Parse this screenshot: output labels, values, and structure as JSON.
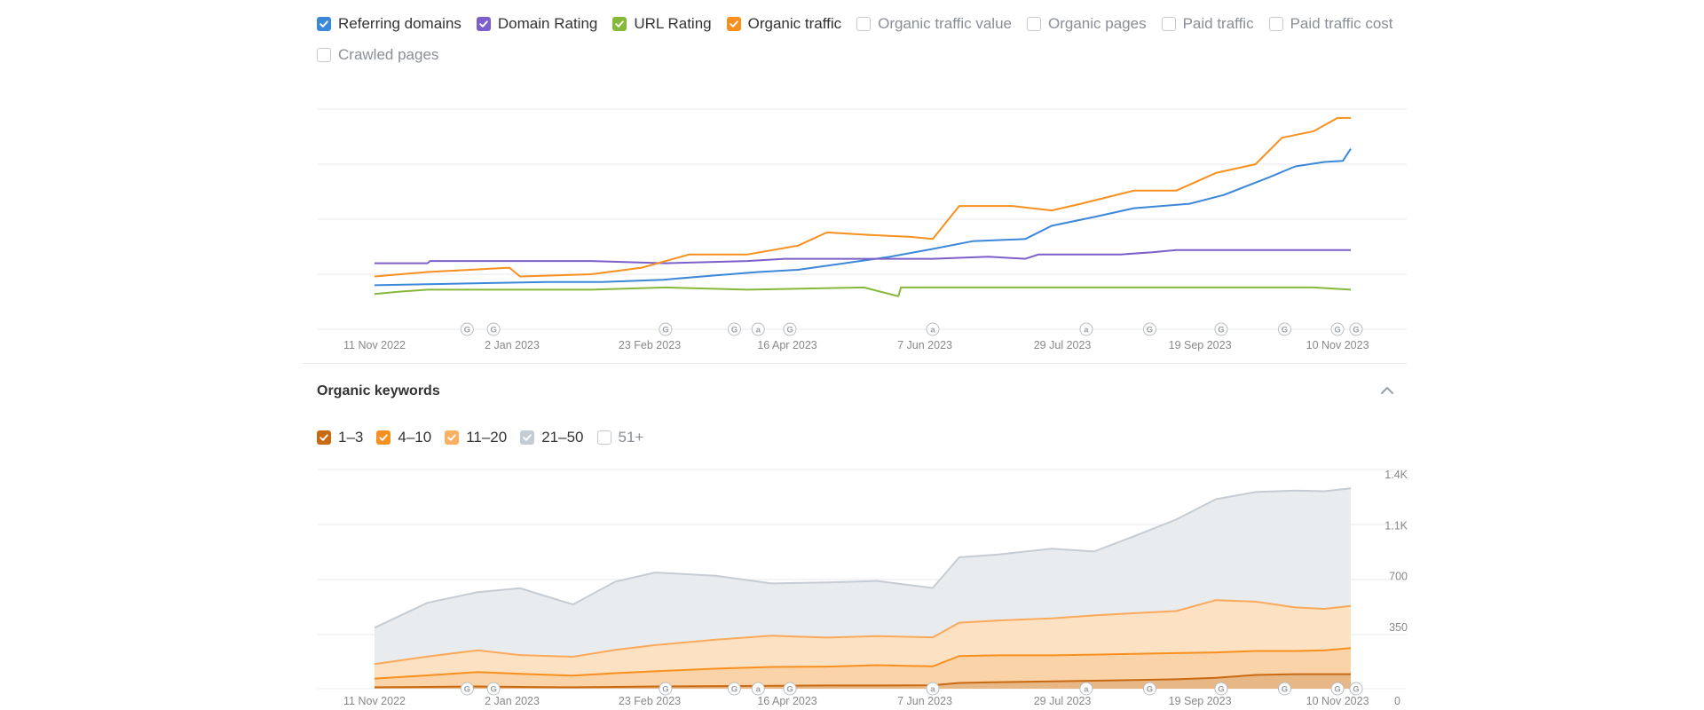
{
  "metrics": [
    {
      "label": "Referring domains",
      "checked": true,
      "color": "#3b87d8"
    },
    {
      "label": "Domain Rating",
      "checked": true,
      "color": "#7c5fc9"
    },
    {
      "label": "URL Rating",
      "checked": true,
      "color": "#86b83a"
    },
    {
      "label": "Organic traffic",
      "checked": true,
      "color": "#f7901e"
    },
    {
      "label": "Organic traffic value",
      "checked": false
    },
    {
      "label": "Organic pages",
      "checked": false
    },
    {
      "label": "Paid traffic",
      "checked": false
    },
    {
      "label": "Paid traffic cost",
      "checked": false
    },
    {
      "label": "Crawled pages",
      "checked": false
    }
  ],
  "keywords": {
    "title": "Organic keywords",
    "filters": [
      {
        "label": "1–3",
        "checked": true,
        "color": "#c96a12"
      },
      {
        "label": "4–10",
        "checked": true,
        "color": "#f7901e"
      },
      {
        "label": "11–20",
        "checked": true,
        "color": "#fbb062"
      },
      {
        "label": "21–50",
        "checked": true,
        "color": "#c4ccd6"
      },
      {
        "label": "51+",
        "checked": false
      }
    ]
  },
  "x_ticks": [
    "11 Nov 2022",
    "2 Jan 2023",
    "23 Feb 2023",
    "16 Apr 2023",
    "7 Jun 2023",
    "29 Jul 2023",
    "19 Sep 2023",
    "10 Nov 2023"
  ],
  "markers": [
    {
      "date": "2022-12-16",
      "letter": "G"
    },
    {
      "date": "2022-12-26",
      "letter": "G"
    },
    {
      "date": "2023-03-01",
      "letter": "G"
    },
    {
      "date": "2023-03-27",
      "letter": "G"
    },
    {
      "date": "2023-04-05",
      "letter": "a"
    },
    {
      "date": "2023-04-17",
      "letter": "G"
    },
    {
      "date": "2023-06-10",
      "letter": "a"
    },
    {
      "date": "2023-08-07",
      "letter": "a"
    },
    {
      "date": "2023-08-31",
      "letter": "G"
    },
    {
      "date": "2023-09-27",
      "letter": "G"
    },
    {
      "date": "2023-10-21",
      "letter": "G"
    },
    {
      "date": "2023-11-10",
      "letter": "G"
    },
    {
      "date": "2023-11-17",
      "letter": "G"
    }
  ],
  "chart_data": [
    {
      "type": "line",
      "x_range": [
        "2022-11-05",
        "2023-11-28"
      ],
      "grid": true,
      "y_axis_labels_shown": false,
      "series": [
        {
          "name": "Referring domains",
          "color": "#3b87d8",
          "y_range": [
            0,
            100
          ],
          "x": [
            "2022-11-11",
            "2022-12-01",
            "2022-12-25",
            "2023-01-15",
            "2023-02-05",
            "2023-02-28",
            "2023-03-20",
            "2023-04-05",
            "2023-04-20",
            "2023-05-05",
            "2023-05-25",
            "2023-06-10",
            "2023-06-25",
            "2023-07-15",
            "2023-07-25",
            "2023-08-10",
            "2023-08-25",
            "2023-09-15",
            "2023-09-28",
            "2023-10-15",
            "2023-10-25",
            "2023-11-05",
            "2023-11-12",
            "2023-11-15"
          ],
          "y": [
            20,
            20.5,
            21,
            21.5,
            21.5,
            22.5,
            24.5,
            26,
            27,
            29.5,
            33,
            36.5,
            40,
            41,
            47,
            51,
            55,
            57,
            61,
            69,
            74,
            76,
            76.5,
            82
          ]
        },
        {
          "name": "Domain Rating",
          "color": "#7c5fc9",
          "y_range": [
            0,
            100
          ],
          "x": [
            "2022-11-11",
            "2022-12-01",
            "2022-12-02",
            "2023-01-01",
            "2023-02-01",
            "2023-03-01",
            "2023-04-01",
            "2023-04-15",
            "2023-05-10",
            "2023-06-10",
            "2023-07-01",
            "2023-07-15",
            "2023-07-20",
            "2023-08-20",
            "2023-09-01",
            "2023-09-10",
            "2023-11-15"
          ],
          "y": [
            30,
            30,
            31,
            31,
            31,
            30,
            31,
            32,
            32,
            32,
            33,
            32,
            34,
            34,
            35,
            36,
            36
          ]
        },
        {
          "name": "URL Rating",
          "color": "#86b83a",
          "y_range": [
            0,
            100
          ],
          "x": [
            "2022-11-11",
            "2022-11-20",
            "2022-12-01",
            "2023-02-01",
            "2023-03-01",
            "2023-04-01",
            "2023-05-15",
            "2023-05-28",
            "2023-05-29",
            "2023-06-05",
            "2023-07-01",
            "2023-08-10",
            "2023-09-01",
            "2023-10-01",
            "2023-11-01",
            "2023-11-15"
          ],
          "y": [
            16,
            17,
            18,
            18,
            19,
            18,
            19,
            15,
            19,
            19,
            19,
            19,
            19,
            19,
            19,
            18
          ]
        },
        {
          "name": "Organic traffic",
          "color": "#f7901e",
          "y_range": [
            0,
            100
          ],
          "x": [
            "2022-11-11",
            "2022-12-01",
            "2023-01-01",
            "2023-01-05",
            "2023-02-01",
            "2023-02-20",
            "2023-03-10",
            "2023-04-01",
            "2023-04-20",
            "2023-05-01",
            "2023-05-15",
            "2023-06-01",
            "2023-06-10",
            "2023-06-20",
            "2023-07-10",
            "2023-07-25",
            "2023-08-05",
            "2023-08-25",
            "2023-09-10",
            "2023-09-25",
            "2023-10-10",
            "2023-10-20",
            "2023-11-01",
            "2023-11-10",
            "2023-11-15"
          ],
          "y": [
            24,
            26,
            28,
            24,
            25,
            28,
            34,
            34,
            38,
            44,
            43,
            42,
            41,
            56,
            56,
            54,
            57,
            63,
            63,
            71,
            75,
            87,
            90,
            96,
            96
          ]
        }
      ],
      "x_tick_labels": [
        "11 Nov 2022",
        "2 Jan 2023",
        "23 Feb 2023",
        "16 Apr 2023",
        "7 Jun 2023",
        "29 Jul 2023",
        "19 Sep 2023",
        "10 Nov 2023"
      ]
    },
    {
      "type": "area",
      "title": "Organic keywords",
      "stacked": true,
      "x_range": [
        "2022-11-05",
        "2023-11-28"
      ],
      "ylim": [
        0,
        1400
      ],
      "y_tick_labels": [
        "0",
        "350",
        "700",
        "1.1K",
        "1.4K"
      ],
      "y_tick_values": [
        0,
        350,
        700,
        1050,
        1400
      ],
      "x_tick_labels": [
        "11 Nov 2022",
        "2 Jan 2023",
        "23 Feb 2023",
        "16 Apr 2023",
        "7 Jun 2023",
        "29 Jul 2023",
        "19 Sep 2023",
        "10 Nov 2023"
      ],
      "x": [
        "2022-11-11",
        "2022-12-01",
        "2022-12-20",
        "2023-01-05",
        "2023-01-25",
        "2023-02-10",
        "2023-02-25",
        "2023-03-20",
        "2023-04-10",
        "2023-05-01",
        "2023-05-20",
        "2023-06-10",
        "2023-06-20",
        "2023-07-05",
        "2023-07-25",
        "2023-08-10",
        "2023-08-25",
        "2023-09-10",
        "2023-09-25",
        "2023-10-10",
        "2023-10-25",
        "2023-11-05",
        "2023-11-15"
      ],
      "series": [
        {
          "name": "1–3",
          "color": "#c96a12",
          "values": [
            10,
            12,
            15,
            12,
            10,
            12,
            15,
            18,
            20,
            22,
            22,
            24,
            40,
            45,
            50,
            55,
            60,
            65,
            75,
            95,
            100,
            100,
            100
          ]
        },
        {
          "name": "4–10",
          "color": "#f7901e",
          "values": [
            60,
            80,
            100,
            90,
            80,
            95,
            105,
            120,
            130,
            130,
            140,
            130,
            185,
            185,
            180,
            180,
            180,
            180,
            175,
            165,
            160,
            165,
            180
          ]
        },
        {
          "name": "11–20",
          "color": "#fbb062",
          "values": [
            100,
            130,
            150,
            130,
            130,
            160,
            180,
            200,
            215,
            200,
            200,
            200,
            230,
            240,
            255,
            270,
            280,
            290,
            360,
            340,
            300,
            285,
            290
          ]
        },
        {
          "name": "21–50",
          "color": "#c4ccd6",
          "values": [
            250,
            370,
            400,
            460,
            360,
            470,
            500,
            440,
            360,
            380,
            380,
            340,
            450,
            455,
            480,
            440,
            530,
            630,
            695,
            755,
            805,
            810,
            810
          ]
        }
      ]
    }
  ]
}
